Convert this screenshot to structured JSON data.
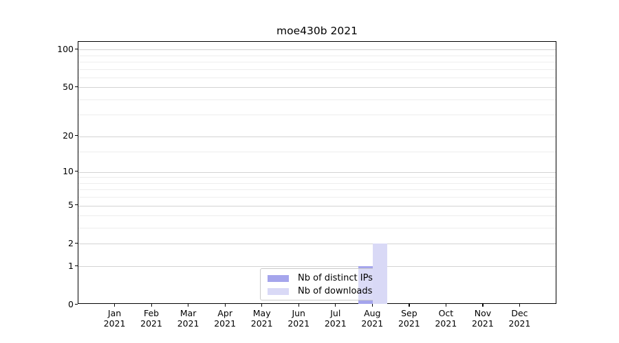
{
  "title": "moe430b 2021",
  "chart_data": {
    "type": "bar",
    "title": "moe430b 2021",
    "categories": [
      "Jan 2021",
      "Feb 2021",
      "Mar 2021",
      "Apr 2021",
      "May 2021",
      "Jun 2021",
      "Jul 2021",
      "Aug 2021",
      "Sep 2021",
      "Oct 2021",
      "Nov 2021",
      "Dec 2021"
    ],
    "series": [
      {
        "name": "Nb of distinct IPs",
        "color": "#a5a5ec",
        "values": [
          0,
          0,
          0,
          0,
          0,
          0,
          0,
          1,
          0,
          0,
          0,
          0
        ]
      },
      {
        "name": "Nb of downloads",
        "color": "#d9d9f6",
        "values": [
          0,
          0,
          0,
          0,
          0,
          0,
          0,
          2,
          0,
          0,
          0,
          0
        ]
      }
    ],
    "xlabel": "",
    "ylabel": "",
    "y_scale": "log1p",
    "y_major_ticks": [
      0,
      1,
      2,
      5,
      10,
      20,
      50,
      100
    ],
    "y_major_tick_labels": [
      "0",
      "1",
      "2",
      "5",
      "10",
      "20",
      "50",
      "100"
    ],
    "y_minor_ticks": [
      3,
      4,
      6,
      7,
      8,
      9,
      15,
      30,
      40,
      60,
      70,
      80,
      90
    ],
    "y_axis_top_value": 114,
    "grid": "horizontal",
    "legend": {
      "entries": [
        "Nb of distinct IPs",
        "Nb of downloads"
      ],
      "position": "inside-lower-center"
    },
    "colors": {
      "distinct_ips_bar": "#a5a5ec",
      "downloads_bar": "#d9d9f6",
      "grid_major": "#d3d3d3",
      "grid_minor": "#ededed",
      "spine": "#000000",
      "text": "#000000",
      "legend_border": "#c9c9c9"
    }
  }
}
